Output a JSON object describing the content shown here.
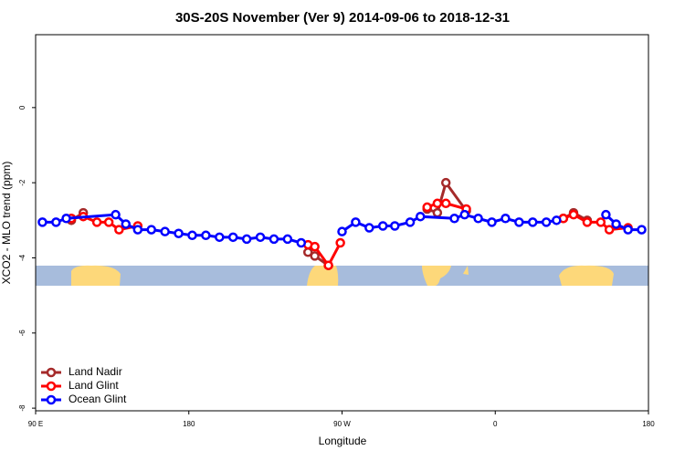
{
  "chart_data": {
    "type": "line",
    "title": "30S-20S November (Ver 9)   2014-09-06 to 2018-12-31",
    "x_label": "Longitude",
    "y_label": "XCO2 - MLO trend (ppm)",
    "xlim": [
      90,
      450
    ],
    "ylim": [
      -8.07,
      1.94
    ],
    "xticks": [
      {
        "value": 90,
        "label": "90 E"
      },
      180,
      {
        "value": 270,
        "label": "90 W"
      },
      {
        "value": 360,
        "label": "0"
      },
      {
        "value": 450,
        "label": "180"
      }
    ],
    "yticks": [
      0,
      -2,
      -4,
      -6,
      -8
    ],
    "legend": "bottom-left",
    "series": [
      {
        "name": "Land Nadir",
        "color": "#a52a2a",
        "x": [
          111,
          118,
          null,
          250,
          254,
          262,
          null,
          320,
          326,
          331,
          343,
          null,
          400,
          406,
          414
        ],
        "values": [
          -3.0,
          -2.8,
          null,
          -3.85,
          -3.95,
          -4.2,
          null,
          -2.7,
          -2.8,
          -2.0,
          -2.75,
          null,
          -2.95,
          -2.8,
          -3.0
        ]
      },
      {
        "name": "Land Glint",
        "color": "#ff0000",
        "x": [
          111,
          118,
          126,
          133,
          139,
          150,
          null,
          250,
          254,
          262,
          269,
          null,
          320,
          326,
          331,
          343,
          null,
          400,
          406,
          414,
          422,
          427,
          438
        ],
        "values": [
          -2.95,
          -2.9,
          -3.05,
          -3.05,
          -3.25,
          -3.15,
          null,
          -3.65,
          -3.7,
          -4.2,
          -3.6,
          null,
          -2.65,
          -2.55,
          -2.55,
          -2.7,
          null,
          -2.95,
          -2.85,
          -3.05,
          -3.05,
          -3.25,
          -3.2
        ]
      },
      {
        "name": "Ocean Glint",
        "color": "#0000ff",
        "x": [
          94,
          102,
          108,
          137,
          143,
          150,
          158,
          166,
          174,
          182,
          190,
          198,
          206,
          214,
          222,
          230,
          238,
          246,
          null,
          270,
          278,
          286,
          294,
          301,
          310,
          316,
          336,
          342,
          350,
          358,
          366,
          374,
          382,
          390,
          396,
          null,
          425,
          431,
          438,
          446
        ],
        "values": [
          -3.05,
          -3.05,
          -2.95,
          -2.85,
          -3.1,
          -3.25,
          -3.25,
          -3.3,
          -3.35,
          -3.4,
          -3.4,
          -3.45,
          -3.45,
          -3.5,
          -3.45,
          -3.5,
          -3.5,
          -3.6,
          null,
          -3.3,
          -3.05,
          -3.2,
          -3.15,
          -3.15,
          -3.05,
          -2.9,
          -2.95,
          -2.85,
          -2.95,
          -3.05,
          -2.95,
          -3.05,
          -3.05,
          -3.05,
          -3.0,
          null,
          -2.85,
          -3.1,
          -3.25,
          -3.25
        ]
      }
    ]
  }
}
